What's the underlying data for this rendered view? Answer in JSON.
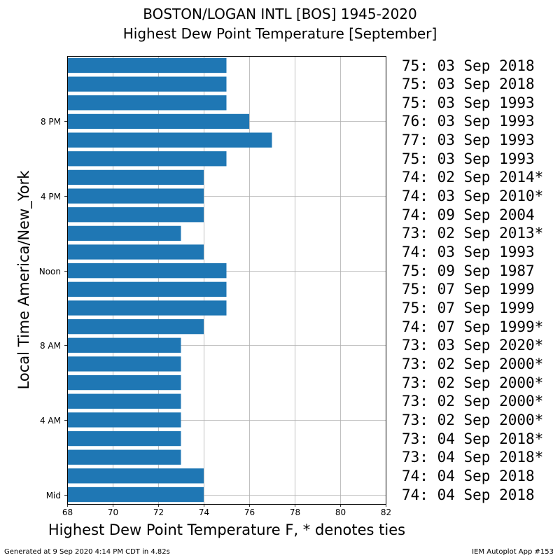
{
  "title": "BOSTON/LOGAN INTL [BOS] 1945-2020",
  "subtitle": "Highest Dew Point Temperature [September]",
  "footer_left": "Generated at 9 Sep 2020 4:14 PM CDT in 4.82s",
  "footer_right": "IEM Autoplot App #153",
  "chart_data": {
    "type": "bar",
    "orientation": "horizontal",
    "xlabel": "Highest Dew Point Temperature F, * denotes ties",
    "ylabel": "Local Time America/New_York",
    "xlim": [
      68,
      82
    ],
    "x_ticks": [
      "68",
      "70",
      "72",
      "74",
      "76",
      "78",
      "80",
      "82"
    ],
    "y_ticks": [
      {
        "hour": 0,
        "label": "Mid"
      },
      {
        "hour": 4,
        "label": "4 AM"
      },
      {
        "hour": 8,
        "label": "8 AM"
      },
      {
        "hour": 12,
        "label": "Noon"
      },
      {
        "hour": 16,
        "label": "4 PM"
      },
      {
        "hour": 20,
        "label": "8 PM"
      }
    ],
    "grid": true,
    "bar_color": "#1f77b4",
    "hours": [
      0,
      1,
      2,
      3,
      4,
      5,
      6,
      7,
      8,
      9,
      10,
      11,
      12,
      13,
      14,
      15,
      16,
      17,
      18,
      19,
      20,
      21,
      22,
      23
    ],
    "values": [
      74,
      74,
      73,
      73,
      73,
      73,
      73,
      73,
      73,
      74,
      75,
      75,
      75,
      74,
      73,
      74,
      74,
      74,
      75,
      77,
      76,
      75,
      75,
      75
    ],
    "labels": [
      "74: 04 Sep 2018",
      "74: 04 Sep 2018",
      "73: 04 Sep 2018*",
      "73: 04 Sep 2018*",
      "73: 02 Sep 2000*",
      "73: 02 Sep 2000*",
      "73: 02 Sep 2000*",
      "73: 02 Sep 2000*",
      "73: 03 Sep 2020*",
      "74: 07 Sep 1999*",
      "75: 07 Sep 1999",
      "75: 07 Sep 1999",
      "75: 09 Sep 1987",
      "74: 03 Sep 1993",
      "73: 02 Sep 2013*",
      "74: 09 Sep 2004",
      "74: 03 Sep 2010*",
      "74: 02 Sep 2014*",
      "75: 03 Sep 1993",
      "77: 03 Sep 1993",
      "76: 03 Sep 1993",
      "75: 03 Sep 1993",
      "75: 03 Sep 2018",
      "75: 03 Sep 2018"
    ]
  }
}
